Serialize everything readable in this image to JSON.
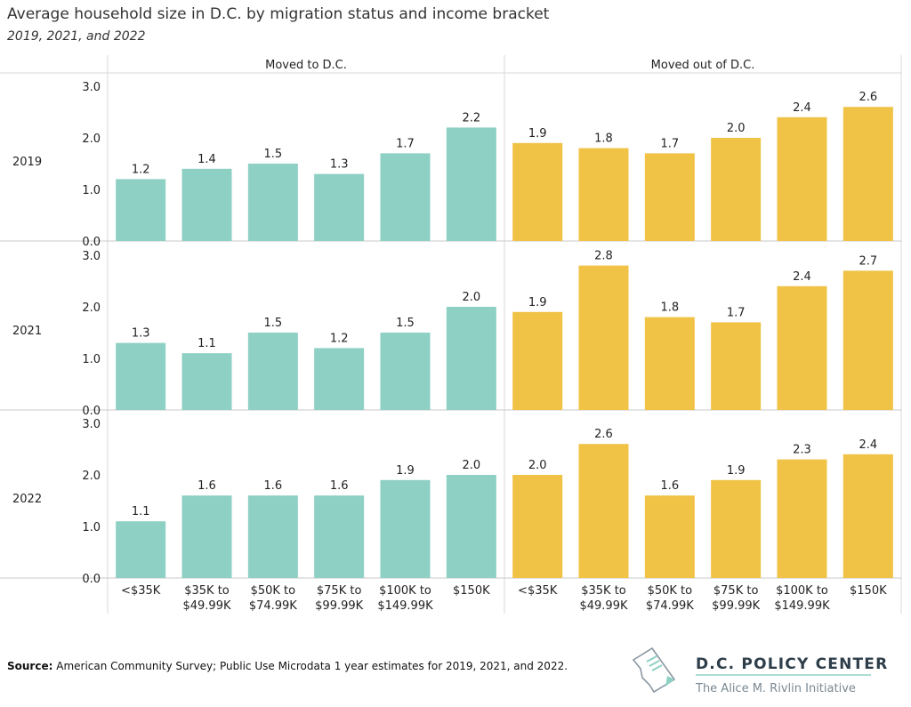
{
  "title": "Average household size in D.C. by migration status and income bracket",
  "subtitle": "2019, 2021, and 2022",
  "source_label": "Source:",
  "source_text": "American Community Survey; Public Use Microdata 1 year estimates for 2019, 2021, and 2022.",
  "logo": {
    "name": "D.C. POLICY CENTER",
    "tagline": "The Alice M. Rivlin Initiative"
  },
  "chart_data": {
    "type": "bar",
    "layout": "small multiples (rows by year, columns by migration status)",
    "columns": [
      {
        "name": "Moved to D.C.",
        "color": "#8ed0c4"
      },
      {
        "name": "Moved out of D.C.",
        "color": "#f0c246"
      }
    ],
    "rows": [
      "2019",
      "2021",
      "2022"
    ],
    "categories": [
      "<$35K",
      "$35K to\n$49.99K",
      "$50K to\n$74.99K",
      "$75K to\n$99.99K",
      "$100K to\n$149.99K",
      "$150K"
    ],
    "yticks": [
      "0.0",
      "1.0",
      "2.0",
      "3.0"
    ],
    "ylim": [
      0,
      3
    ],
    "values": {
      "Moved to D.C.": {
        "2019": [
          1.2,
          1.4,
          1.5,
          1.3,
          1.7,
          2.2
        ],
        "2021": [
          1.3,
          1.1,
          1.5,
          1.2,
          1.5,
          2.0
        ],
        "2022": [
          1.1,
          1.6,
          1.6,
          1.6,
          1.9,
          2.0
        ]
      },
      "Moved out of D.C.": {
        "2019": [
          1.9,
          1.8,
          1.7,
          2.0,
          2.4,
          2.6
        ],
        "2021": [
          1.9,
          2.8,
          1.8,
          1.7,
          2.4,
          2.7
        ],
        "2022": [
          2.0,
          2.6,
          1.6,
          1.9,
          2.3,
          2.4
        ]
      }
    }
  }
}
